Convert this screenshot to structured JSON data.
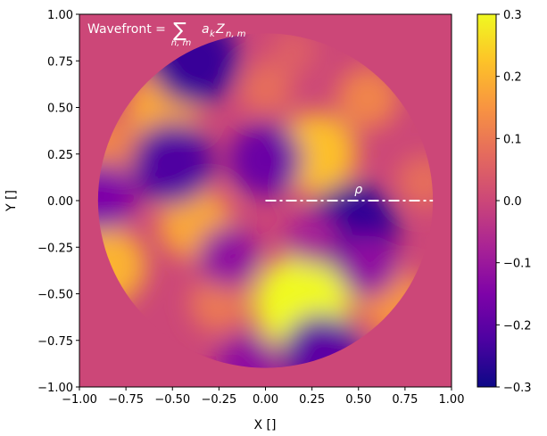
{
  "chart_data": {
    "type": "heatmap",
    "title": "",
    "xlabel": "X []",
    "ylabel": "Y []",
    "xlim": [
      -1.0,
      1.0
    ],
    "ylim": [
      -1.0,
      1.0
    ],
    "x_ticks": [
      -1.0,
      -0.75,
      -0.5,
      -0.25,
      0.0,
      0.25,
      0.5,
      0.75,
      1.0
    ],
    "x_tick_labels": [
      "−1.00",
      "−0.75",
      "−0.50",
      "−0.25",
      "0.00",
      "0.25",
      "0.50",
      "0.75",
      "1.00"
    ],
    "y_ticks": [
      1.0,
      0.75,
      0.5,
      0.25,
      0.0,
      -0.25,
      -0.5,
      -0.75,
      -1.0
    ],
    "y_tick_labels": [
      "1.00",
      "0.75",
      "0.50",
      "0.25",
      "0.00",
      "−0.25",
      "−0.50",
      "−0.75",
      "−1.00"
    ],
    "colormap": "plasma",
    "background_color": "#cc4778",
    "annotation": {
      "text": "Wavefront = ∑ aₖZₙ,ₘ",
      "prefix": "Wavefront = ",
      "sum_symbol": "∑",
      "term": "a",
      "term_sub": "k",
      "term2": "Z",
      "term2_sub": "n, m",
      "sum_sub": "n, m"
    },
    "pupil": {
      "center": [
        0.0,
        0.0
      ],
      "radius": 0.9
    },
    "rho_line": {
      "x": [
        0.0,
        0.9
      ],
      "y": [
        0.0,
        0.0
      ],
      "label": "ρ",
      "color": "#ffffff"
    },
    "blobs": [
      {
        "x": 0.2,
        "y": -0.55,
        "value": 0.3
      },
      {
        "x": 0.27,
        "y": 0.25,
        "value": 0.22
      },
      {
        "x": -0.38,
        "y": -0.12,
        "value": 0.18
      },
      {
        "x": -0.85,
        "y": -0.35,
        "value": 0.2
      },
      {
        "x": 0.7,
        "y": -0.55,
        "value": 0.15
      },
      {
        "x": -0.55,
        "y": 0.5,
        "value": 0.18
      },
      {
        "x": -0.85,
        "y": 0.28,
        "value": 0.12
      },
      {
        "x": 0.55,
        "y": 0.55,
        "value": 0.12
      },
      {
        "x": 0.85,
        "y": 0.1,
        "value": 0.08
      },
      {
        "x": 0.0,
        "y": 0.6,
        "value": 0.08
      },
      {
        "x": -0.25,
        "y": -0.55,
        "value": 0.1
      },
      {
        "x": 0.47,
        "y": -0.15,
        "value": -0.26
      },
      {
        "x": -0.5,
        "y": 0.2,
        "value": -0.22
      },
      {
        "x": -0.38,
        "y": 0.75,
        "value": -0.25
      },
      {
        "x": 0.0,
        "y": 0.22,
        "value": -0.18
      },
      {
        "x": -0.2,
        "y": -0.3,
        "value": -0.12
      },
      {
        "x": -0.88,
        "y": 0.02,
        "value": -0.15
      },
      {
        "x": 0.3,
        "y": -0.82,
        "value": -0.2
      },
      {
        "x": 0.55,
        "y": -0.35,
        "value": -0.12
      },
      {
        "x": -0.1,
        "y": -0.88,
        "value": -0.12
      },
      {
        "x": 0.25,
        "y": -0.2,
        "value": -0.08
      },
      {
        "x": 0.15,
        "y": 0.8,
        "value": 0.05
      }
    ],
    "colorbar": {
      "ticks": [
        0.3,
        0.2,
        0.1,
        0.0,
        -0.1,
        -0.2,
        -0.3
      ],
      "tick_labels": [
        "0.3",
        "0.2",
        "0.1",
        "0.0",
        "−0.1",
        "−0.2",
        "−0.3"
      ],
      "vmin": -0.3,
      "vmax": 0.3
    }
  }
}
